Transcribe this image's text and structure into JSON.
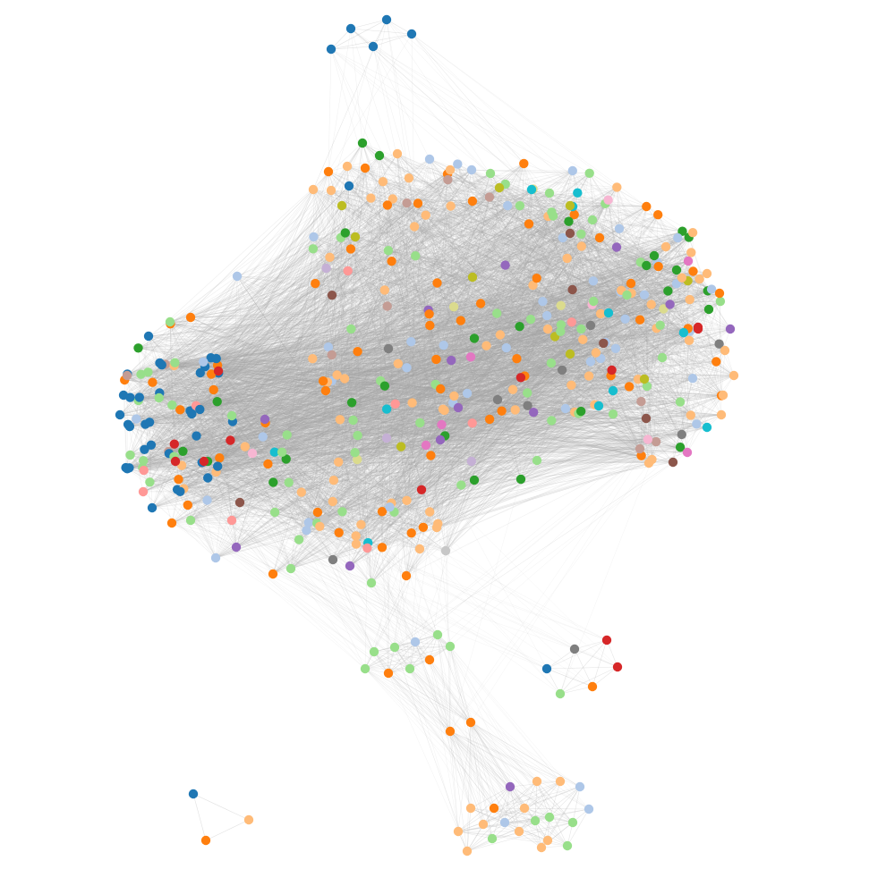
{
  "palette": {
    "edge": "#a9a9a9",
    "dark_blue": "#1f77b4",
    "light_blue": "#aec7e8",
    "orange": "#ff7f0e",
    "light_orange": "#ffbb78",
    "green": "#2ca02c",
    "light_green": "#98df8a",
    "red": "#d62728",
    "pink_red": "#ff9896",
    "purple": "#9467bd",
    "lavender": "#c5b0d5",
    "brown": "#8c564b",
    "tan": "#c49c94",
    "magenta": "#e377c2",
    "pink": "#f7b6d2",
    "gray": "#7f7f7f",
    "light_gray": "#c7c7c7",
    "olive": "#bcbd22",
    "khaki": "#dbdb8d",
    "cyan": "#17becf"
  },
  "graph": {
    "type": "network",
    "node_count_estimate": 420,
    "components": [
      "main-cluster",
      "top-small-cluster",
      "mid-light-green-cluster",
      "right-small-cluster",
      "bottom-cluster",
      "isolated-triangle"
    ]
  }
}
